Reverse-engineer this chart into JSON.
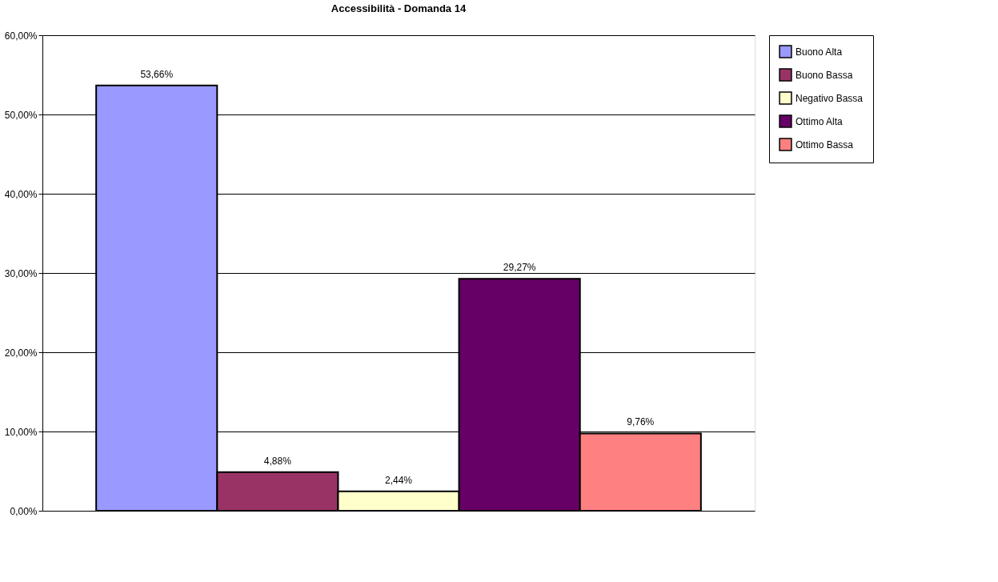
{
  "chart_data": {
    "type": "bar",
    "title": "Accessibilità - Domanda 14",
    "categories": [
      null
    ],
    "series": [
      {
        "name": "Buono Alta",
        "color": "#9999ff",
        "values": [
          53.66
        ],
        "value_labels": [
          "53,66%"
        ]
      },
      {
        "name": "Buono Bassa",
        "color": "#993366",
        "values": [
          4.88
        ],
        "value_labels": [
          "4,88%"
        ]
      },
      {
        "name": "Negativo Bassa",
        "color": "#ffffcc",
        "values": [
          2.44
        ],
        "value_labels": [
          "2,44%"
        ]
      },
      {
        "name": "Ottimo Alta",
        "color": "#660066",
        "values": [
          29.27
        ],
        "value_labels": [
          "29,27%"
        ]
      },
      {
        "name": "Ottimo Bassa",
        "color": "#ff8080",
        "values": [
          9.76
        ],
        "value_labels": [
          "9,76%"
        ]
      }
    ],
    "ylim": [
      0,
      60
    ],
    "yticks": [
      {
        "value": 0,
        "label": "0,00%"
      },
      {
        "value": 10,
        "label": "10,00%"
      },
      {
        "value": 20,
        "label": "20,00%"
      },
      {
        "value": 30,
        "label": "30,00%"
      },
      {
        "value": 40,
        "label": "40,00%"
      },
      {
        "value": 50,
        "label": "50,00%"
      },
      {
        "value": 60,
        "label": "60,00%"
      }
    ],
    "grid": "y",
    "legend": "right"
  }
}
